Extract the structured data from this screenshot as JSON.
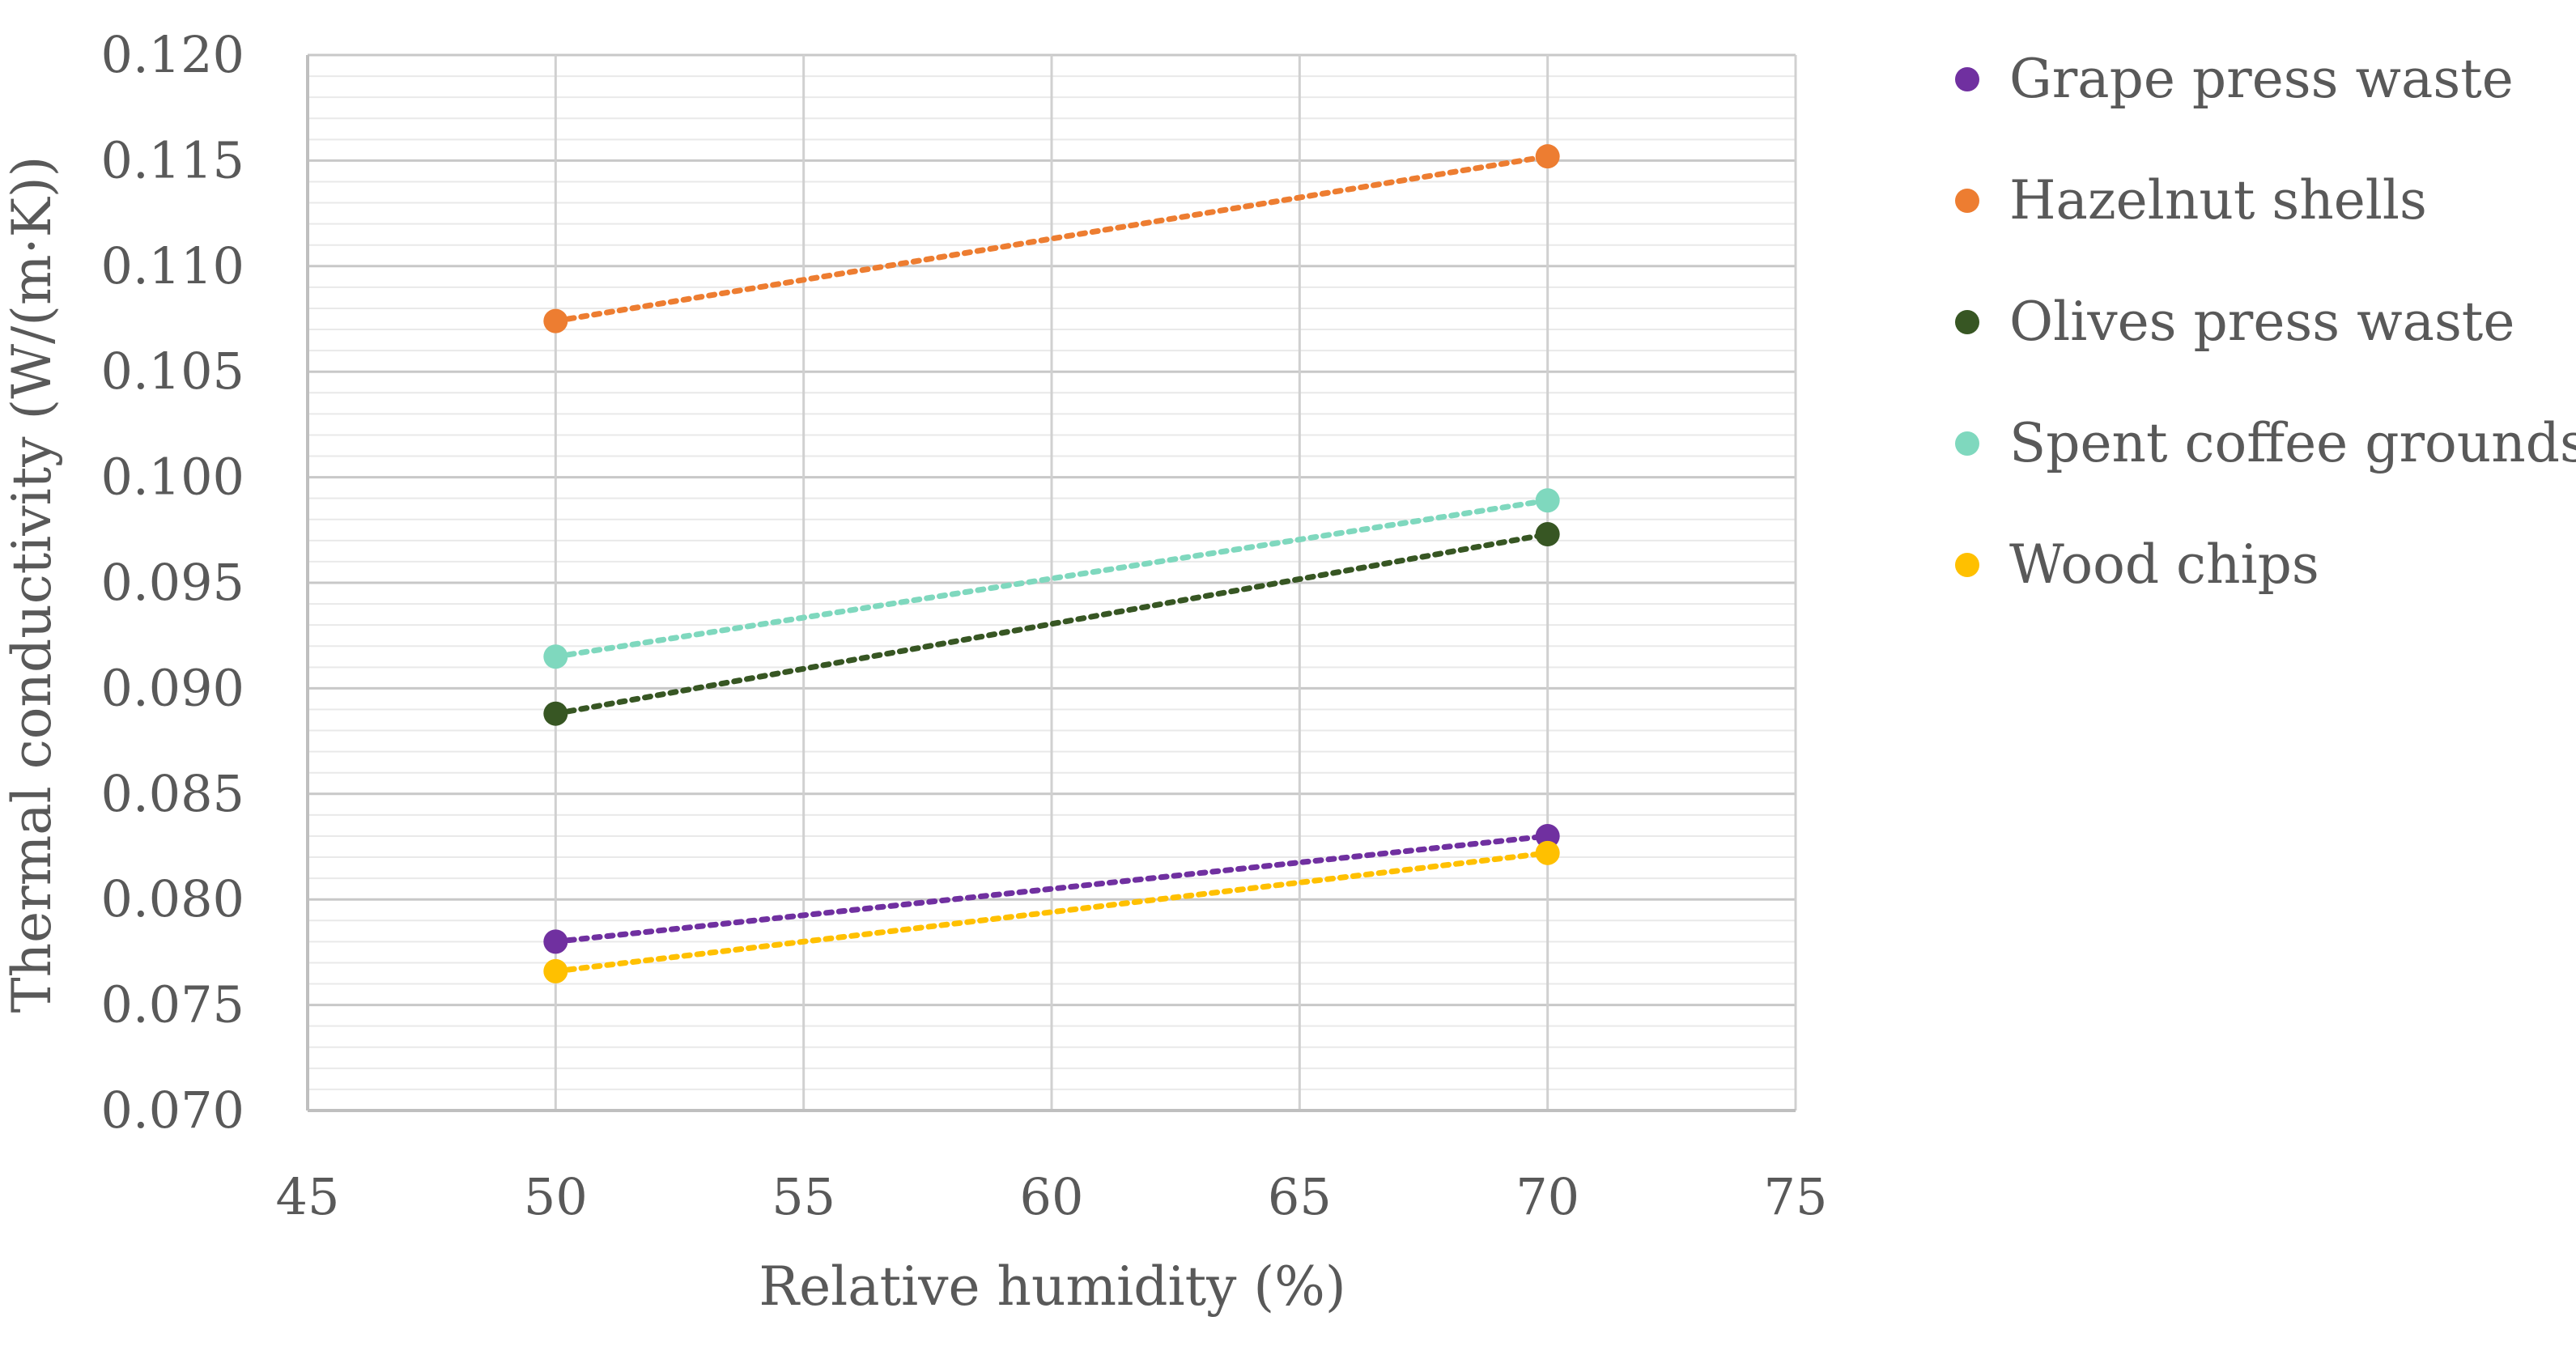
{
  "chart_data": {
    "type": "scatter",
    "title": "",
    "xlabel": "Relative humidity (%)",
    "ylabel": "Thermal conductivity (W/(m·K))",
    "xlim": [
      45,
      75
    ],
    "ylim": [
      0.07,
      0.12
    ],
    "x_ticks": [
      "45",
      "50",
      "55",
      "60",
      "65",
      "70",
      "75"
    ],
    "y_ticks": [
      "0.070",
      "0.075",
      "0.080",
      "0.085",
      "0.090",
      "0.095",
      "0.100",
      "0.105",
      "0.110",
      "0.115",
      "0.120"
    ],
    "grid": true,
    "trendlines": "dotted linear",
    "legend_position": "right",
    "series": [
      {
        "name": "Grape press waste",
        "color": "#7030A0",
        "x": [
          50,
          70
        ],
        "y": [
          0.078,
          0.083
        ]
      },
      {
        "name": "Hazelnut shells",
        "color": "#ED7D31",
        "x": [
          50,
          70
        ],
        "y": [
          0.1074,
          0.1152
        ]
      },
      {
        "name": "Olives press waste",
        "color": "#375623",
        "x": [
          50,
          70
        ],
        "y": [
          0.0888,
          0.0973
        ]
      },
      {
        "name": "Spent coffee grounds",
        "color": "#7FD8BE",
        "x": [
          50,
          70
        ],
        "y": [
          0.0915,
          0.0989
        ]
      },
      {
        "name": "Wood chips",
        "color": "#FFC000",
        "x": [
          50,
          70
        ],
        "y": [
          0.0766,
          0.0822
        ]
      }
    ]
  }
}
